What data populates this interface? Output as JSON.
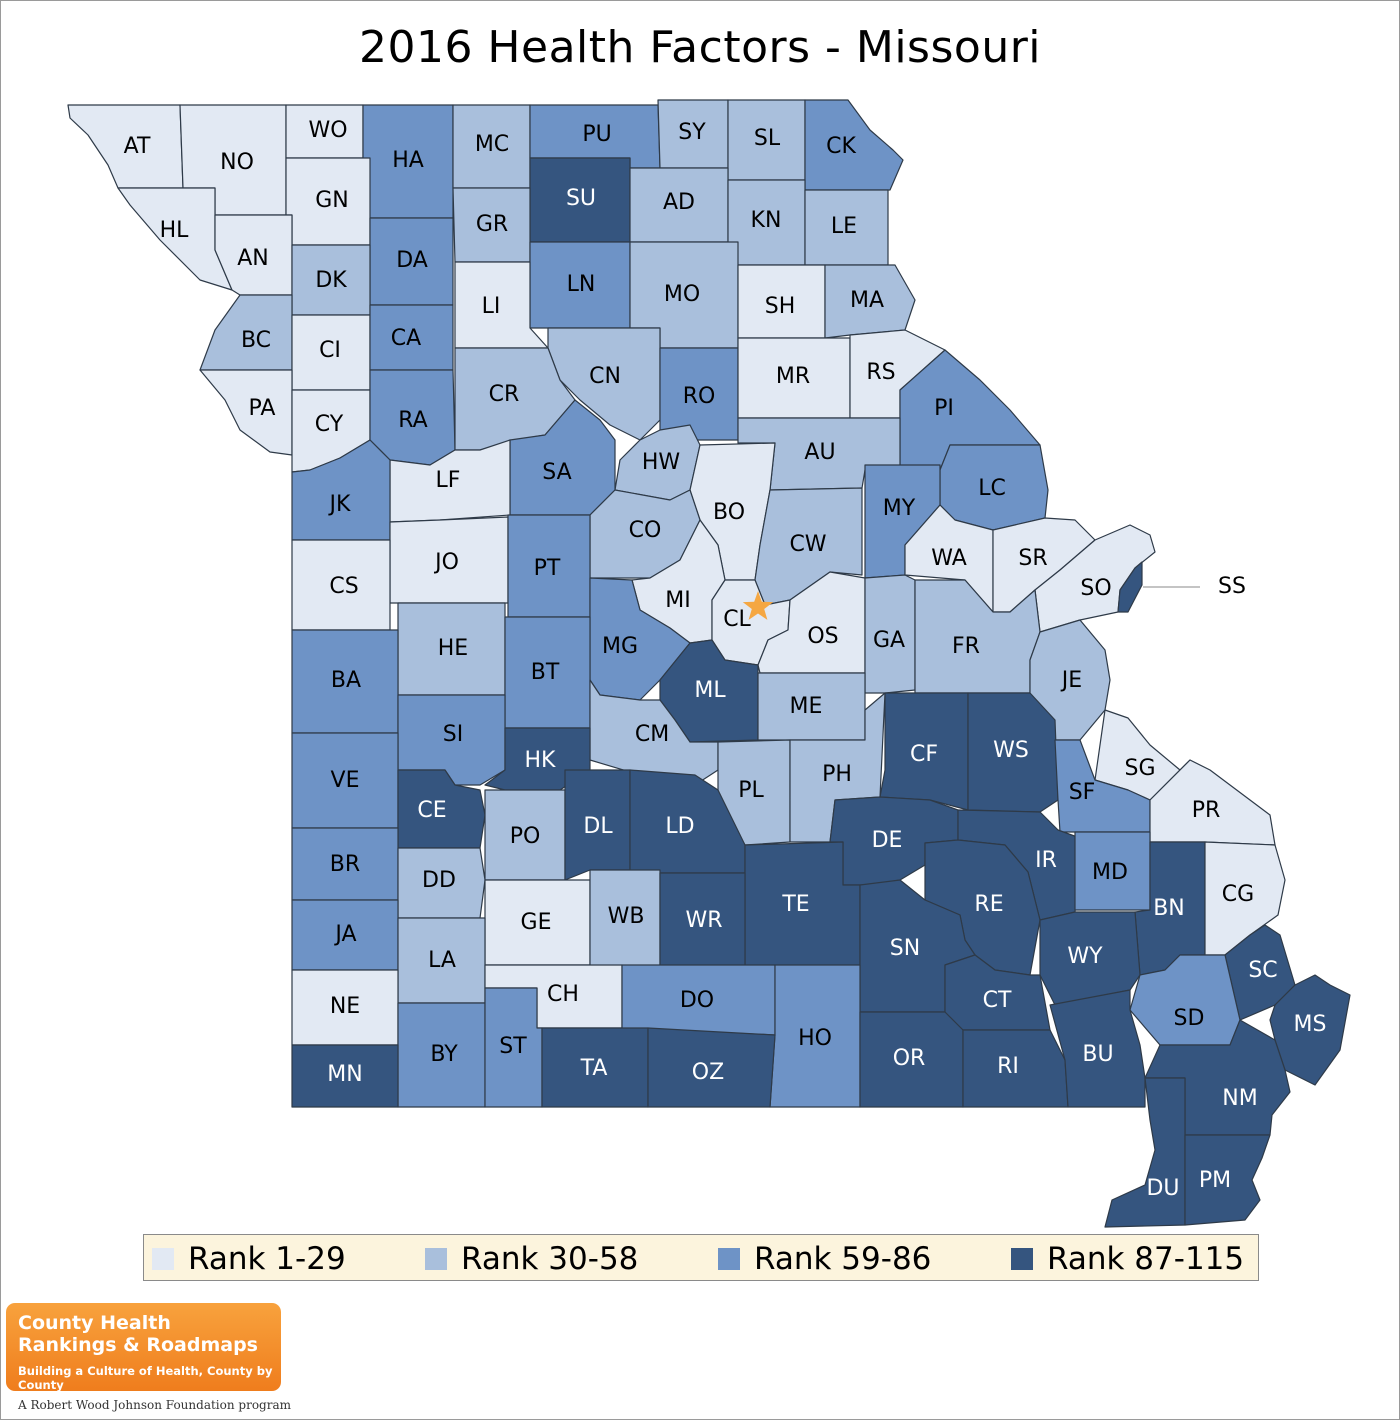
{
  "title": "2016 Health Factors - Missouri",
  "colors": {
    "rank1": "#e2e9f3",
    "rank2": "#a9bfdc",
    "rank3": "#6e93c6",
    "rank4": "#35557f",
    "star": "#f5a742"
  },
  "legend": [
    {
      "label": "Rank 1-29",
      "color": "#e2e9f3"
    },
    {
      "label": "Rank 30-58",
      "color": "#a9bfdc"
    },
    {
      "label": "Rank 59-86",
      "color": "#6e93c6"
    },
    {
      "label": "Rank 87-115",
      "color": "#35557f"
    }
  ],
  "counties": [
    {
      "code": "AT",
      "rank_group": 1
    },
    {
      "code": "NO",
      "rank_group": 1
    },
    {
      "code": "WO",
      "rank_group": 1
    },
    {
      "code": "HA",
      "rank_group": 3
    },
    {
      "code": "MC",
      "rank_group": 2
    },
    {
      "code": "PU",
      "rank_group": 3
    },
    {
      "code": "SY",
      "rank_group": 2
    },
    {
      "code": "SL",
      "rank_group": 2
    },
    {
      "code": "CK",
      "rank_group": 3
    },
    {
      "code": "HL",
      "rank_group": 1
    },
    {
      "code": "GN",
      "rank_group": 1
    },
    {
      "code": "SU",
      "rank_group": 4
    },
    {
      "code": "AD",
      "rank_group": 2
    },
    {
      "code": "KN",
      "rank_group": 2
    },
    {
      "code": "LE",
      "rank_group": 2
    },
    {
      "code": "AN",
      "rank_group": 1
    },
    {
      "code": "DA",
      "rank_group": 3
    },
    {
      "code": "GR",
      "rank_group": 2
    },
    {
      "code": "DK",
      "rank_group": 2
    },
    {
      "code": "LN",
      "rank_group": 3
    },
    {
      "code": "MO",
      "rank_group": 2
    },
    {
      "code": "SH",
      "rank_group": 1
    },
    {
      "code": "MA",
      "rank_group": 2
    },
    {
      "code": "LI",
      "rank_group": 1
    },
    {
      "code": "BC",
      "rank_group": 2
    },
    {
      "code": "CI",
      "rank_group": 1
    },
    {
      "code": "CA",
      "rank_group": 3
    },
    {
      "code": "CN",
      "rank_group": 2
    },
    {
      "code": "RO",
      "rank_group": 3
    },
    {
      "code": "MR",
      "rank_group": 1
    },
    {
      "code": "RS",
      "rank_group": 1
    },
    {
      "code": "PA",
      "rank_group": 1
    },
    {
      "code": "CY",
      "rank_group": 1
    },
    {
      "code": "RA",
      "rank_group": 3
    },
    {
      "code": "CR",
      "rank_group": 2
    },
    {
      "code": "PI",
      "rank_group": 3
    },
    {
      "code": "AU",
      "rank_group": 2
    },
    {
      "code": "HW",
      "rank_group": 2
    },
    {
      "code": "SA",
      "rank_group": 3
    },
    {
      "code": "LF",
      "rank_group": 1
    },
    {
      "code": "JK",
      "rank_group": 3
    },
    {
      "code": "LC",
      "rank_group": 3
    },
    {
      "code": "MY",
      "rank_group": 3
    },
    {
      "code": "BO",
      "rank_group": 1
    },
    {
      "code": "CO",
      "rank_group": 2
    },
    {
      "code": "CW",
      "rank_group": 2
    },
    {
      "code": "WA",
      "rank_group": 1
    },
    {
      "code": "SR",
      "rank_group": 1
    },
    {
      "code": "JO",
      "rank_group": 1
    },
    {
      "code": "PT",
      "rank_group": 3
    },
    {
      "code": "CS",
      "rank_group": 1
    },
    {
      "code": "SO",
      "rank_group": 1
    },
    {
      "code": "SS",
      "rank_group": 4
    },
    {
      "code": "MI",
      "rank_group": 1
    },
    {
      "code": "CL",
      "rank_group": 1
    },
    {
      "code": "OS",
      "rank_group": 1
    },
    {
      "code": "GA",
      "rank_group": 2
    },
    {
      "code": "FR",
      "rank_group": 2
    },
    {
      "code": "MG",
      "rank_group": 3
    },
    {
      "code": "HE",
      "rank_group": 2
    },
    {
      "code": "BT",
      "rank_group": 3
    },
    {
      "code": "JE",
      "rank_group": 2
    },
    {
      "code": "BA",
      "rank_group": 3
    },
    {
      "code": "ML",
      "rank_group": 4
    },
    {
      "code": "ME",
      "rank_group": 2
    },
    {
      "code": "SI",
      "rank_group": 3
    },
    {
      "code": "CM",
      "rank_group": 2
    },
    {
      "code": "CF",
      "rank_group": 4
    },
    {
      "code": "WS",
      "rank_group": 4
    },
    {
      "code": "HK",
      "rank_group": 4
    },
    {
      "code": "SG",
      "rank_group": 1
    },
    {
      "code": "VE",
      "rank_group": 3
    },
    {
      "code": "PL",
      "rank_group": 2
    },
    {
      "code": "PH",
      "rank_group": 2
    },
    {
      "code": "SF",
      "rank_group": 3
    },
    {
      "code": "PR",
      "rank_group": 1
    },
    {
      "code": "CE",
      "rank_group": 4
    },
    {
      "code": "PO",
      "rank_group": 2
    },
    {
      "code": "DL",
      "rank_group": 4
    },
    {
      "code": "LD",
      "rank_group": 4
    },
    {
      "code": "DE",
      "rank_group": 4
    },
    {
      "code": "BR",
      "rank_group": 3
    },
    {
      "code": "IR",
      "rank_group": 4
    },
    {
      "code": "MD",
      "rank_group": 3
    },
    {
      "code": "DD",
      "rank_group": 2
    },
    {
      "code": "TE",
      "rank_group": 4
    },
    {
      "code": "BN",
      "rank_group": 4
    },
    {
      "code": "CG",
      "rank_group": 1
    },
    {
      "code": "RE",
      "rank_group": 4
    },
    {
      "code": "GE",
      "rank_group": 1
    },
    {
      "code": "WB",
      "rank_group": 2
    },
    {
      "code": "WR",
      "rank_group": 4
    },
    {
      "code": "JA",
      "rank_group": 3
    },
    {
      "code": "SN",
      "rank_group": 4
    },
    {
      "code": "LA",
      "rank_group": 2
    },
    {
      "code": "WY",
      "rank_group": 4
    },
    {
      "code": "SC",
      "rank_group": 4
    },
    {
      "code": "CH",
      "rank_group": 1
    },
    {
      "code": "NE",
      "rank_group": 1
    },
    {
      "code": "DO",
      "rank_group": 3
    },
    {
      "code": "CT",
      "rank_group": 4
    },
    {
      "code": "SD",
      "rank_group": 3
    },
    {
      "code": "MS",
      "rank_group": 4
    },
    {
      "code": "HO",
      "rank_group": 3
    },
    {
      "code": "BY",
      "rank_group": 3
    },
    {
      "code": "ST",
      "rank_group": 3
    },
    {
      "code": "TA",
      "rank_group": 4
    },
    {
      "code": "OZ",
      "rank_group": 4
    },
    {
      "code": "OR",
      "rank_group": 4
    },
    {
      "code": "RI",
      "rank_group": 4
    },
    {
      "code": "BU",
      "rank_group": 4
    },
    {
      "code": "MN",
      "rank_group": 4
    },
    {
      "code": "NM",
      "rank_group": 4
    },
    {
      "code": "DU",
      "rank_group": 4
    },
    {
      "code": "PM",
      "rank_group": 4
    }
  ],
  "logo": {
    "line1": "County Health",
    "line2": "Rankings & Roadmaps",
    "tagline": "Building a Culture of Health, County by County",
    "program": "A Robert Wood Johnson Foundation program"
  }
}
